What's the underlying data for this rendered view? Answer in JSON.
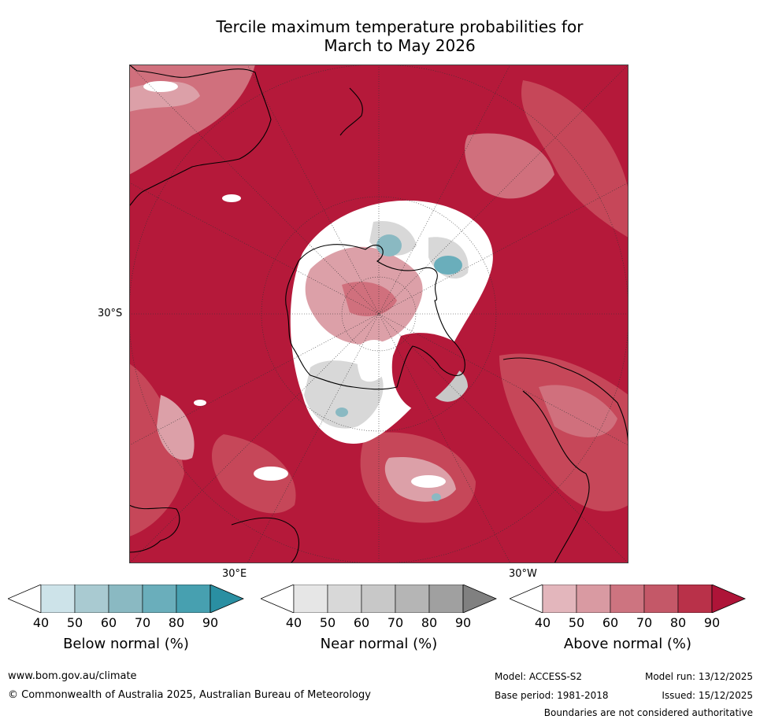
{
  "title": {
    "line1": "Tercile maximum temperature probabilities for",
    "line2": "March to May 2026"
  },
  "map": {
    "lat_label": "30°S",
    "lon_label_east": "30°E",
    "lon_label_west": "30°W",
    "colors": {
      "ocean_dominant": "#b5193a",
      "above_80": "#c64759",
      "above_70": "#d0707d",
      "above_50": "#dca0a8",
      "near_normal": "#d8d8d8",
      "below_normal": "#6aaebb",
      "neutral": "#ffffff"
    }
  },
  "colorbars": [
    {
      "label": "Below normal (%)",
      "ticks": [
        "40",
        "50",
        "60",
        "70",
        "80",
        "90"
      ],
      "colors": [
        "#ffffff",
        "#cde3e9",
        "#a9cad1",
        "#8ab9c2",
        "#6aaebb",
        "#47a0b0",
        "#2a8fa2"
      ]
    },
    {
      "label": "Near normal (%)",
      "ticks": [
        "40",
        "50",
        "60",
        "70",
        "80",
        "90"
      ],
      "colors": [
        "#ffffff",
        "#e6e6e6",
        "#d8d8d8",
        "#c8c8c8",
        "#b5b5b5",
        "#a0a0a0",
        "#808080"
      ]
    },
    {
      "label": "Above normal (%)",
      "ticks": [
        "40",
        "50",
        "60",
        "70",
        "80",
        "90"
      ],
      "colors": [
        "#ffffff",
        "#e3b6bc",
        "#d99aa2",
        "#cd7480",
        "#c45868",
        "#b93149",
        "#ae1438"
      ]
    }
  ],
  "footer": {
    "website": "www.bom.gov.au/climate",
    "copyright": "© Commonwealth of Australia 2025, Australian Bureau of Meteorology",
    "model": "Model: ACCESS-S2",
    "model_run": "Model run: 13/12/2025",
    "base_period": "Base period: 1981-2018",
    "issued": "Issued: 15/12/2025",
    "disclaimer": "Boundaries are not considered authoritative"
  }
}
